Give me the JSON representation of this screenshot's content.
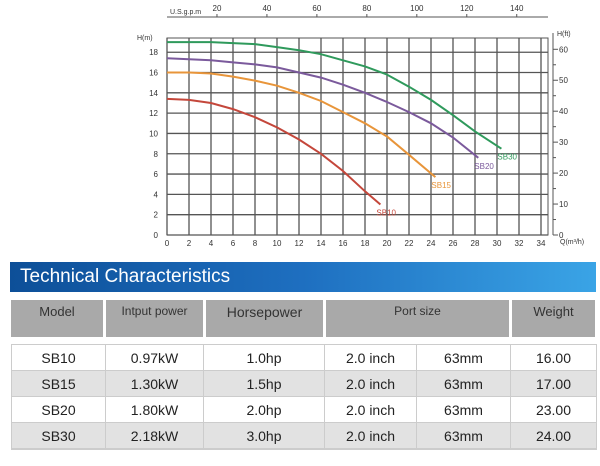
{
  "chart_data": {
    "type": "line",
    "xlabel": "Q(m³/h)",
    "ylabel_left": "H(m)",
    "ylabel_right": "H(ft)",
    "top_axis_label": "U.S.g.p.m",
    "xlim": [
      0,
      34
    ],
    "ylim": [
      0,
      19.4
    ],
    "x_ticks": [
      0,
      2,
      4,
      6,
      8,
      10,
      12,
      14,
      16,
      18,
      20,
      22,
      24,
      26,
      28,
      30,
      32,
      34
    ],
    "y_ticks": [
      0,
      2,
      4,
      6,
      8,
      10,
      12,
      14,
      16,
      18
    ],
    "right_ticks_ft": [
      0,
      10,
      20,
      30,
      40,
      50,
      60
    ],
    "top_ticks_gpm": [
      20,
      40,
      60,
      80,
      100,
      120,
      140
    ],
    "grid": true,
    "series": [
      {
        "name": "SB10",
        "color": "#c4473b",
        "points": [
          [
            0,
            13.4
          ],
          [
            2,
            13.3
          ],
          [
            4,
            13
          ],
          [
            6,
            12.4
          ],
          [
            8,
            11.6
          ],
          [
            10,
            10.6
          ],
          [
            12,
            9.4
          ],
          [
            14,
            8
          ],
          [
            16,
            6.3
          ],
          [
            18,
            4.3
          ],
          [
            19.4,
            3.0
          ]
        ]
      },
      {
        "name": "SB15",
        "color": "#e8953a",
        "points": [
          [
            0,
            16
          ],
          [
            2,
            16
          ],
          [
            4,
            15.9
          ],
          [
            6,
            15.6
          ],
          [
            8,
            15.2
          ],
          [
            10,
            14.7
          ],
          [
            12,
            14
          ],
          [
            14,
            13.2
          ],
          [
            16,
            12.1
          ],
          [
            18,
            11
          ],
          [
            20,
            9.7
          ],
          [
            22,
            7.9
          ],
          [
            24.4,
            5.7
          ]
        ]
      },
      {
        "name": "SB20",
        "color": "#7b5a9c",
        "points": [
          [
            0,
            17.4
          ],
          [
            4,
            17.2
          ],
          [
            6,
            17
          ],
          [
            8,
            16.8
          ],
          [
            10,
            16.5
          ],
          [
            12,
            16
          ],
          [
            14,
            15.5
          ],
          [
            16,
            14.8
          ],
          [
            18,
            14
          ],
          [
            20,
            13.1
          ],
          [
            22,
            12.1
          ],
          [
            24,
            11
          ],
          [
            26,
            9.6
          ],
          [
            28.3,
            7.6
          ]
        ]
      },
      {
        "name": "SB30",
        "color": "#2f9a5c",
        "points": [
          [
            0,
            19
          ],
          [
            4,
            19
          ],
          [
            6,
            18.9
          ],
          [
            8,
            18.8
          ],
          [
            10,
            18.5
          ],
          [
            12,
            18.2
          ],
          [
            14,
            17.8
          ],
          [
            16,
            17.2
          ],
          [
            18,
            16.6
          ],
          [
            20,
            15.8
          ],
          [
            22,
            14.6
          ],
          [
            24,
            13.3
          ],
          [
            26,
            11.8
          ],
          [
            28,
            10.2
          ],
          [
            30.4,
            8.5
          ]
        ]
      }
    ]
  },
  "table": {
    "title": "Technical Characteristics",
    "headers": [
      "Model",
      "Intput power",
      "Horsepower",
      "Port size",
      "Weight"
    ],
    "rows": [
      [
        "SB10",
        "0.97kW",
        "1.0hp",
        "2.0 inch",
        "63mm",
        "16.00"
      ],
      [
        "SB15",
        "1.30kW",
        "1.5hp",
        "2.0 inch",
        "63mm",
        "17.00"
      ],
      [
        "SB20",
        "1.80kW",
        "2.0hp",
        "2.0 inch",
        "63mm",
        "23.00"
      ],
      [
        "SB30",
        "2.18kW",
        "3.0hp",
        "2.0 inch",
        "63mm",
        "24.00"
      ]
    ]
  }
}
